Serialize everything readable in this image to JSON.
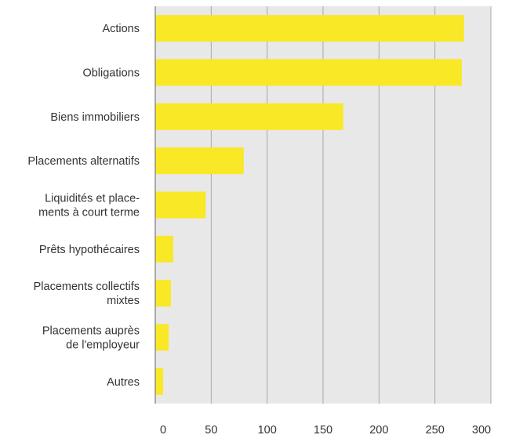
{
  "chart_data": {
    "type": "bar",
    "orientation": "horizontal",
    "categories": [
      [
        "Actions"
      ],
      [
        "Obligations"
      ],
      [
        "Biens immobiliers"
      ],
      [
        "Placements alternatifs"
      ],
      [
        "Liquidités et place-",
        "ments à court terme"
      ],
      [
        "Prêts hypothécaires"
      ],
      [
        "Placements collectifs",
        "mixtes"
      ],
      [
        "Placements auprès",
        "de l'employeur"
      ],
      [
        "Autres"
      ]
    ],
    "values": [
      276,
      274,
      168,
      79,
      45,
      16,
      14,
      12,
      7
    ],
    "xlim": [
      0,
      300
    ],
    "xticks": [
      "0",
      "50",
      "100",
      "150",
      "200",
      "250",
      "300"
    ],
    "grid": "vertical",
    "colors": {
      "bar": "#F9E825",
      "plot_bg": "#E8E8E8",
      "grid": "#A8A8A8",
      "axis": "#7A7A7A",
      "text": "#333333"
    }
  }
}
